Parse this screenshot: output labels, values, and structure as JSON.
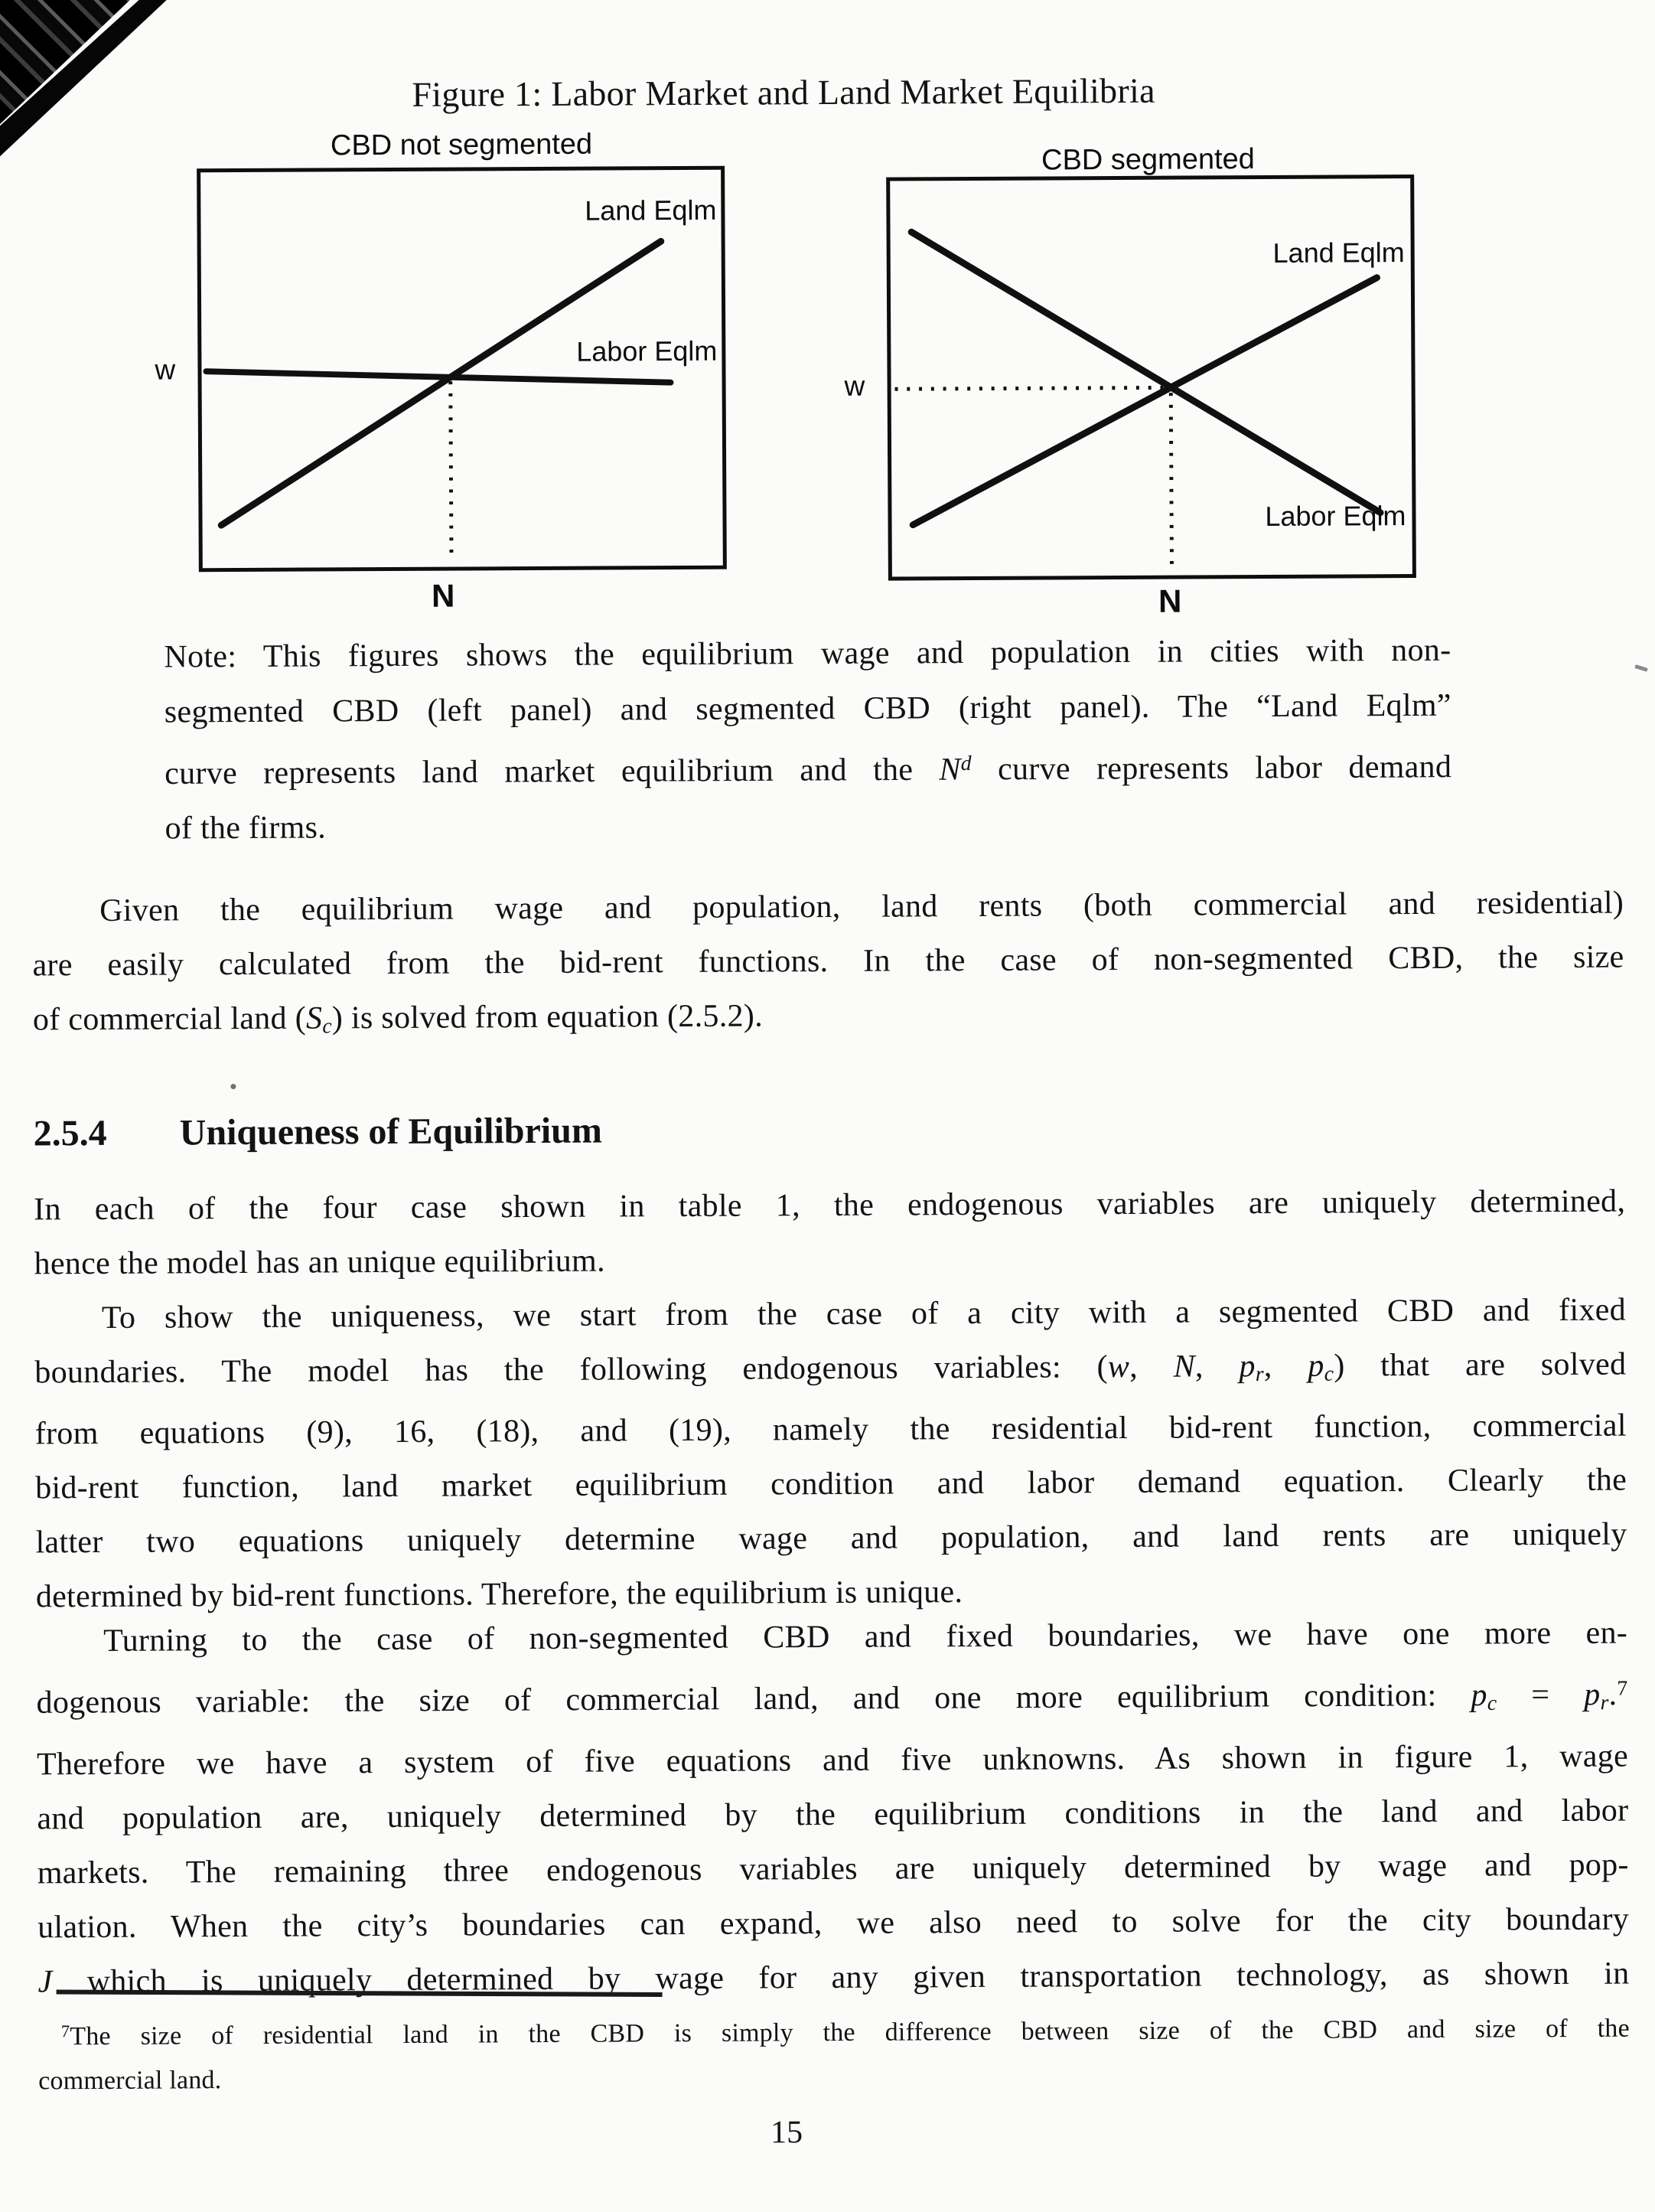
{
  "page": {
    "number": "15"
  },
  "figure": {
    "title": "Figure 1: Labor Market and Land Market Equilibria",
    "panels": [
      {
        "title": "CBD not segmented",
        "land_label": "Land Eqlm",
        "labor_label": "Labor Eqlm",
        "w_axis_label": "w",
        "n_axis_label": "N"
      },
      {
        "title": "CBD segmented",
        "land_label": "Land Eqlm",
        "labor_label": "Labor Eqlm",
        "w_axis_label": "w",
        "n_axis_label": "N"
      }
    ],
    "note_lines": [
      "Note: This figures shows the equilibrium wage and population in cities with non-",
      "segmented CBD (left panel) and segmented CBD (right panel). The “Land Eqlm”",
      [
        {
          "t": "curve represents land market equilibrium and the "
        },
        {
          "t": "N",
          "s": "i"
        },
        {
          "t": "d",
          "s": "supi"
        },
        {
          "t": " curve represents labor demand"
        }
      ],
      "of the firms."
    ]
  },
  "body": {
    "p1_lines": [
      "Given the equilibrium wage and population, land rents (both commercial and residential)",
      "are easily calculated from the bid-rent functions. In the case of non-segmented CBD, the size",
      [
        {
          "t": "of commercial land ("
        },
        {
          "t": "S",
          "s": "i"
        },
        {
          "t": "c",
          "s": "sub"
        },
        {
          "t": ") is solved from equation (2.5.2)."
        }
      ]
    ],
    "heading": {
      "number": "2.5.4",
      "title": "Uniqueness of Equilibrium"
    },
    "p2_lines": [
      "In each of the four case shown in table 1, the endogenous variables are uniquely determined,",
      "hence the model has an unique equilibrium."
    ],
    "p3_lines": [
      "To show the uniqueness, we start from the case of a city with a segmented CBD and fixed",
      [
        {
          "t": "boundaries. The model has the following endogenous variables: ("
        },
        {
          "t": "w",
          "s": "i"
        },
        {
          "t": ", "
        },
        {
          "t": "N",
          "s": "i"
        },
        {
          "t": ", "
        },
        {
          "t": "p",
          "s": "i"
        },
        {
          "t": "r",
          "s": "sub"
        },
        {
          "t": ", "
        },
        {
          "t": "p",
          "s": "i"
        },
        {
          "t": "c",
          "s": "sub"
        },
        {
          "t": ") that are solved"
        }
      ],
      "from equations (9), 16, (18), and (19), namely the residential bid-rent function, commercial",
      "bid-rent function, land market equilibrium condition and labor demand equation. Clearly the",
      "latter two equations uniquely determine wage and population, and land rents are uniquely",
      "determined by bid-rent functions. Therefore, the equilibrium is unique."
    ],
    "p4_lines": [
      "Turning to the case of non-segmented CBD and fixed boundaries, we have one more en-",
      [
        {
          "t": "dogenous variable: the size of commercial land, and one more equilibrium condition: "
        },
        {
          "t": "p",
          "s": "i"
        },
        {
          "t": "c",
          "s": "sub"
        },
        {
          "t": " = "
        },
        {
          "t": "p",
          "s": "i"
        },
        {
          "t": "r",
          "s": "sub"
        },
        {
          "t": "."
        },
        {
          "t": "7",
          "s": "sup"
        }
      ],
      "Therefore we have a system of five equations and five unknowns. As shown in figure 1, wage",
      "and population are, uniquely determined by the equilibrium conditions in the land and labor",
      "markets. The remaining three endogenous variables are uniquely determined by wage and pop-",
      "ulation. When the city’s boundaries can expand, we also need to solve for the city boundary",
      [
        {
          "t": "J",
          "s": "i"
        },
        {
          "t": " which is uniquely determined by wage for any given transportation technology, as shown in"
        }
      ]
    ]
  },
  "footnote": {
    "lines": [
      [
        {
          "t": "7",
          "s": "sup"
        },
        {
          "t": "The size of residential land in the CBD is simply the difference between size of the CBD and size of the"
        }
      ],
      "commercial land."
    ]
  }
}
